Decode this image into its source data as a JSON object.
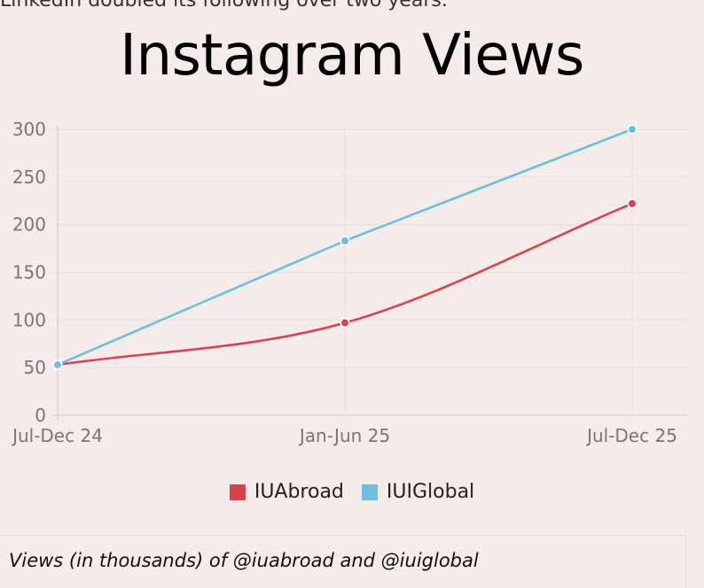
{
  "page": {
    "intro_text": "LinkedIn doubled its following over two years."
  },
  "chart_data": {
    "type": "line",
    "title": "Instagram Views",
    "caption": "Views (in thousands) of @iuabroad and @iuiglobal",
    "categories": [
      "Jul-Dec 24",
      "Jan-Jun 25",
      "Jul-Dec 25"
    ],
    "ylim": [
      0,
      300
    ],
    "yticks": [
      0,
      50,
      100,
      150,
      200,
      250,
      300
    ],
    "grid": true,
    "legend_position": "bottom",
    "series": [
      {
        "name": "IUAbroad",
        "values": [
          53,
          97,
          222
        ],
        "color": "#d9434e",
        "curve": "smooth"
      },
      {
        "name": "IUIGlobal",
        "values": [
          53,
          183,
          300
        ],
        "color": "#6cc0de",
        "curve": "linear"
      }
    ]
  }
}
